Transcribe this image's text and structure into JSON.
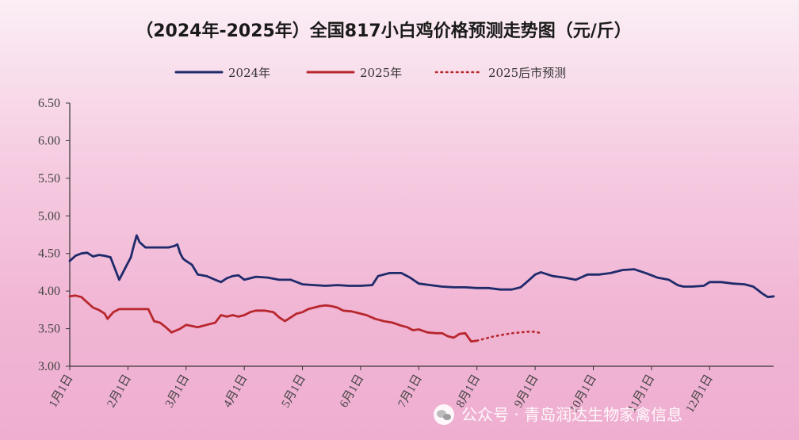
{
  "chart_data": {
    "type": "line",
    "title": "（2024年-2025年）全国817小白鸡价格预测走势图（元/斤）",
    "ylim": [
      3.0,
      6.5
    ],
    "y_ticks": [
      "6.50",
      "6.00",
      "5.50",
      "5.00",
      "4.50",
      "4.00",
      "3.50",
      "3.00"
    ],
    "x_ticks": [
      "1月1日",
      "2月1日",
      "3月1日",
      "4月1日",
      "5月1日",
      "6月1日",
      "7月1日",
      "8月1日",
      "9月1日",
      "10月1日",
      "11月1日",
      "12月1日"
    ],
    "x_end": 12.1,
    "grid": false,
    "legend_position": "top-center",
    "series": [
      {
        "name": "2024年",
        "color": "#1f2a6b",
        "style": "solid",
        "points": [
          [
            0.0,
            4.4
          ],
          [
            0.1,
            4.47
          ],
          [
            0.2,
            4.5
          ],
          [
            0.3,
            4.51
          ],
          [
            0.4,
            4.46
          ],
          [
            0.5,
            4.48
          ],
          [
            0.6,
            4.47
          ],
          [
            0.7,
            4.45
          ],
          [
            0.8,
            4.25
          ],
          [
            0.85,
            4.15
          ],
          [
            0.95,
            4.3
          ],
          [
            1.05,
            4.45
          ],
          [
            1.1,
            4.6
          ],
          [
            1.15,
            4.74
          ],
          [
            1.2,
            4.65
          ],
          [
            1.3,
            4.58
          ],
          [
            1.5,
            4.58
          ],
          [
            1.7,
            4.58
          ],
          [
            1.8,
            4.6
          ],
          [
            1.85,
            4.62
          ],
          [
            1.9,
            4.5
          ],
          [
            1.95,
            4.43
          ],
          [
            2.0,
            4.4
          ],
          [
            2.1,
            4.35
          ],
          [
            2.2,
            4.22
          ],
          [
            2.35,
            4.2
          ],
          [
            2.5,
            4.15
          ],
          [
            2.6,
            4.12
          ],
          [
            2.7,
            4.17
          ],
          [
            2.8,
            4.2
          ],
          [
            2.9,
            4.21
          ],
          [
            3.0,
            4.15
          ],
          [
            3.2,
            4.19
          ],
          [
            3.4,
            4.18
          ],
          [
            3.6,
            4.15
          ],
          [
            3.8,
            4.15
          ],
          [
            4.0,
            4.09
          ],
          [
            4.2,
            4.08
          ],
          [
            4.4,
            4.07
          ],
          [
            4.6,
            4.08
          ],
          [
            4.8,
            4.07
          ],
          [
            5.0,
            4.07
          ],
          [
            5.2,
            4.08
          ],
          [
            5.3,
            4.2
          ],
          [
            5.5,
            4.24
          ],
          [
            5.7,
            4.24
          ],
          [
            5.85,
            4.18
          ],
          [
            6.0,
            4.1
          ],
          [
            6.2,
            4.08
          ],
          [
            6.4,
            4.06
          ],
          [
            6.6,
            4.05
          ],
          [
            6.8,
            4.05
          ],
          [
            7.0,
            4.04
          ],
          [
            7.2,
            4.04
          ],
          [
            7.4,
            4.02
          ],
          [
            7.6,
            4.02
          ],
          [
            7.75,
            4.05
          ],
          [
            7.9,
            4.15
          ],
          [
            8.0,
            4.22
          ],
          [
            8.1,
            4.25
          ],
          [
            8.3,
            4.2
          ],
          [
            8.5,
            4.18
          ],
          [
            8.7,
            4.15
          ],
          [
            8.9,
            4.22
          ],
          [
            9.1,
            4.22
          ],
          [
            9.3,
            4.24
          ],
          [
            9.5,
            4.28
          ],
          [
            9.7,
            4.29
          ],
          [
            9.9,
            4.24
          ],
          [
            10.1,
            4.18
          ],
          [
            10.3,
            4.15
          ],
          [
            10.45,
            4.08
          ],
          [
            10.55,
            4.06
          ],
          [
            10.7,
            4.06
          ],
          [
            10.9,
            4.07
          ],
          [
            11.0,
            4.12
          ],
          [
            11.2,
            4.12
          ],
          [
            11.4,
            4.1
          ],
          [
            11.6,
            4.09
          ],
          [
            11.75,
            4.06
          ],
          [
            11.85,
            4.0
          ],
          [
            11.9,
            3.97
          ],
          [
            12.0,
            3.92
          ],
          [
            12.1,
            3.93
          ]
        ]
      },
      {
        "name": "2025年",
        "color": "#b8272d",
        "style": "solid",
        "points": [
          [
            0.0,
            3.93
          ],
          [
            0.1,
            3.94
          ],
          [
            0.2,
            3.92
          ],
          [
            0.3,
            3.85
          ],
          [
            0.4,
            3.78
          ],
          [
            0.5,
            3.75
          ],
          [
            0.6,
            3.7
          ],
          [
            0.65,
            3.63
          ],
          [
            0.75,
            3.72
          ],
          [
            0.85,
            3.76
          ],
          [
            1.0,
            3.76
          ],
          [
            1.2,
            3.76
          ],
          [
            1.35,
            3.76
          ],
          [
            1.45,
            3.6
          ],
          [
            1.55,
            3.58
          ],
          [
            1.65,
            3.52
          ],
          [
            1.75,
            3.45
          ],
          [
            1.9,
            3.5
          ],
          [
            2.0,
            3.55
          ],
          [
            2.2,
            3.52
          ],
          [
            2.35,
            3.55
          ],
          [
            2.5,
            3.58
          ],
          [
            2.6,
            3.68
          ],
          [
            2.7,
            3.66
          ],
          [
            2.8,
            3.68
          ],
          [
            2.9,
            3.66
          ],
          [
            3.0,
            3.68
          ],
          [
            3.1,
            3.72
          ],
          [
            3.2,
            3.74
          ],
          [
            3.35,
            3.74
          ],
          [
            3.5,
            3.72
          ],
          [
            3.6,
            3.65
          ],
          [
            3.7,
            3.6
          ],
          [
            3.8,
            3.65
          ],
          [
            3.9,
            3.7
          ],
          [
            4.0,
            3.72
          ],
          [
            4.1,
            3.76
          ],
          [
            4.2,
            3.78
          ],
          [
            4.3,
            3.8
          ],
          [
            4.4,
            3.81
          ],
          [
            4.5,
            3.8
          ],
          [
            4.6,
            3.78
          ],
          [
            4.7,
            3.74
          ],
          [
            4.85,
            3.73
          ],
          [
            5.0,
            3.7
          ],
          [
            5.1,
            3.68
          ],
          [
            5.25,
            3.63
          ],
          [
            5.4,
            3.6
          ],
          [
            5.55,
            3.58
          ],
          [
            5.7,
            3.54
          ],
          [
            5.8,
            3.52
          ],
          [
            5.9,
            3.48
          ],
          [
            6.0,
            3.49
          ],
          [
            6.15,
            3.45
          ],
          [
            6.3,
            3.44
          ],
          [
            6.4,
            3.44
          ],
          [
            6.5,
            3.4
          ],
          [
            6.6,
            3.38
          ],
          [
            6.7,
            3.43
          ],
          [
            6.8,
            3.44
          ],
          [
            6.9,
            3.33
          ],
          [
            7.0,
            3.34
          ]
        ]
      },
      {
        "name": "2025后市预测",
        "color": "#b8272d",
        "style": "dotted",
        "points": [
          [
            7.0,
            3.34
          ],
          [
            7.15,
            3.37
          ],
          [
            7.3,
            3.4
          ],
          [
            7.45,
            3.42
          ],
          [
            7.6,
            3.44
          ],
          [
            7.75,
            3.45
          ],
          [
            7.85,
            3.46
          ],
          [
            8.0,
            3.46
          ],
          [
            8.1,
            3.44
          ]
        ]
      }
    ]
  },
  "watermark": {
    "text": "公众号 · 青岛润达生物家禽信息",
    "icon": "wechat-icon"
  }
}
